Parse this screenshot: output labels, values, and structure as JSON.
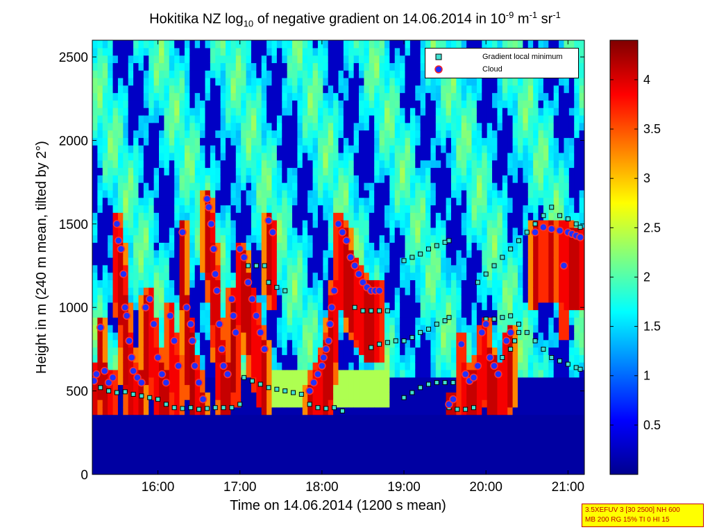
{
  "title": {
    "prefix": "Hokitika NZ log",
    "sub": "10",
    "middle": " of negative gradient on 14.06.2014 in 10",
    "sup1": "-9",
    "unit1": " m",
    "sup2": "-1",
    "unit2": " sr",
    "sup3": "-1"
  },
  "chart_data": {
    "type": "heatmap",
    "xlabel": "Time on 14.06.2014 (1200 s mean)",
    "ylabel": "Height in m (240 m mean, tilted by 2°)",
    "xlim": [
      15.2,
      21.2
    ],
    "ylim": [
      0,
      2600
    ],
    "x_ticks": [
      {
        "value": 16,
        "label": "16:00"
      },
      {
        "value": 17,
        "label": "17:00"
      },
      {
        "value": 18,
        "label": "18:00"
      },
      {
        "value": 19,
        "label": "19:00"
      },
      {
        "value": 20,
        "label": "20:00"
      },
      {
        "value": 21,
        "label": "21:00"
      }
    ],
    "y_ticks": [
      0,
      500,
      1000,
      1500,
      2000,
      2500
    ],
    "colorbar": {
      "range": [
        0,
        4.4
      ],
      "ticks": [
        0.5,
        1,
        1.5,
        2,
        2.5,
        3,
        3.5,
        4
      ],
      "colormap": "jet"
    },
    "legend": [
      {
        "label": "Gradient local minimum",
        "marker": "square",
        "color": "#40e0d0"
      },
      {
        "label": "Cloud",
        "marker": "circle",
        "color": "#2030ff",
        "edge": "#ff2020"
      }
    ],
    "legend_position": "top-right",
    "series": [
      {
        "name": "Gradient local minimum",
        "points": [
          [
            15.22,
            560
          ],
          [
            15.3,
            520
          ],
          [
            15.4,
            500
          ],
          [
            15.5,
            490
          ],
          [
            15.6,
            495
          ],
          [
            15.7,
            480
          ],
          [
            15.8,
            470
          ],
          [
            15.9,
            460
          ],
          [
            16.0,
            450
          ],
          [
            16.1,
            420
          ],
          [
            16.2,
            400
          ],
          [
            16.3,
            395
          ],
          [
            16.4,
            400
          ],
          [
            16.5,
            390
          ],
          [
            16.6,
            395
          ],
          [
            16.7,
            400
          ],
          [
            16.8,
            400
          ],
          [
            16.9,
            400
          ],
          [
            17.0,
            420
          ],
          [
            17.05,
            580
          ],
          [
            17.15,
            560
          ],
          [
            17.25,
            540
          ],
          [
            17.35,
            520
          ],
          [
            17.45,
            510
          ],
          [
            17.55,
            500
          ],
          [
            17.65,
            490
          ],
          [
            17.75,
            480
          ],
          [
            17.1,
            1250
          ],
          [
            17.2,
            1250
          ],
          [
            17.3,
            1250
          ],
          [
            17.35,
            1150
          ],
          [
            17.45,
            1120
          ],
          [
            17.55,
            1100
          ],
          [
            17.85,
            420
          ],
          [
            17.95,
            400
          ],
          [
            18.05,
            395
          ],
          [
            18.15,
            400
          ],
          [
            18.25,
            380
          ],
          [
            18.4,
            1000
          ],
          [
            18.5,
            980
          ],
          [
            18.6,
            980
          ],
          [
            18.7,
            980
          ],
          [
            18.8,
            980
          ],
          [
            18.6,
            760
          ],
          [
            18.7,
            780
          ],
          [
            18.8,
            790
          ],
          [
            18.9,
            800
          ],
          [
            19.0,
            800
          ],
          [
            19.1,
            820
          ],
          [
            19.2,
            850
          ],
          [
            19.3,
            870
          ],
          [
            19.4,
            900
          ],
          [
            19.5,
            920
          ],
          [
            19.55,
            940
          ],
          [
            19.0,
            1280
          ],
          [
            19.1,
            1300
          ],
          [
            19.2,
            1320
          ],
          [
            19.3,
            1350
          ],
          [
            19.4,
            1370
          ],
          [
            19.5,
            1390
          ],
          [
            19.55,
            1400
          ],
          [
            19.0,
            460
          ],
          [
            19.1,
            490
          ],
          [
            19.2,
            520
          ],
          [
            19.3,
            540
          ],
          [
            19.4,
            550
          ],
          [
            19.5,
            550
          ],
          [
            19.6,
            550
          ],
          [
            19.55,
            400
          ],
          [
            19.65,
            390
          ],
          [
            19.75,
            390
          ],
          [
            19.85,
            400
          ],
          [
            19.9,
            1150
          ],
          [
            20.0,
            1200
          ],
          [
            20.1,
            1250
          ],
          [
            20.2,
            1300
          ],
          [
            20.3,
            1350
          ],
          [
            20.4,
            1400
          ],
          [
            20.5,
            1450
          ],
          [
            20.6,
            1500
          ],
          [
            20.7,
            1550
          ],
          [
            20.8,
            1600
          ],
          [
            20.9,
            1550
          ],
          [
            21.0,
            1530
          ],
          [
            21.1,
            1500
          ],
          [
            21.15,
            1480
          ],
          [
            20.0,
            930
          ],
          [
            20.1,
            930
          ],
          [
            20.2,
            940
          ],
          [
            20.3,
            950
          ],
          [
            20.4,
            900
          ],
          [
            20.5,
            850
          ],
          [
            20.6,
            800
          ],
          [
            20.7,
            750
          ],
          [
            20.8,
            700
          ],
          [
            20.9,
            680
          ],
          [
            21.0,
            660
          ],
          [
            21.1,
            640
          ],
          [
            21.15,
            630
          ],
          [
            20.2,
            700
          ],
          [
            20.3,
            750
          ],
          [
            20.35,
            800
          ],
          [
            20.4,
            850
          ]
        ]
      },
      {
        "name": "Cloud",
        "points": [
          [
            15.22,
            560
          ],
          [
            15.25,
            600
          ],
          [
            15.3,
            880
          ],
          [
            15.35,
            620
          ],
          [
            15.4,
            550
          ],
          [
            15.45,
            580
          ],
          [
            15.5,
            1500
          ],
          [
            15.52,
            1400
          ],
          [
            15.55,
            1350
          ],
          [
            15.58,
            1200
          ],
          [
            15.6,
            1000
          ],
          [
            15.62,
            950
          ],
          [
            15.65,
            800
          ],
          [
            15.68,
            700
          ],
          [
            15.7,
            620
          ],
          [
            15.75,
            580
          ],
          [
            15.8,
            550
          ],
          [
            15.85,
            1000
          ],
          [
            15.9,
            1050
          ],
          [
            15.95,
            900
          ],
          [
            16.0,
            700
          ],
          [
            16.05,
            600
          ],
          [
            16.1,
            550
          ],
          [
            16.15,
            950
          ],
          [
            16.2,
            800
          ],
          [
            16.25,
            650
          ],
          [
            16.3,
            1450
          ],
          [
            16.35,
            1000
          ],
          [
            16.4,
            900
          ],
          [
            16.42,
            800
          ],
          [
            16.45,
            650
          ],
          [
            16.5,
            550
          ],
          [
            16.55,
            450
          ],
          [
            16.6,
            1650
          ],
          [
            16.62,
            1600
          ],
          [
            16.65,
            1500
          ],
          [
            16.68,
            1350
          ],
          [
            16.7,
            1200
          ],
          [
            16.72,
            1100
          ],
          [
            16.75,
            900
          ],
          [
            16.78,
            750
          ],
          [
            16.8,
            650
          ],
          [
            16.85,
            600
          ],
          [
            16.9,
            1050
          ],
          [
            16.92,
            950
          ],
          [
            16.95,
            850
          ],
          [
            17.0,
            1350
          ],
          [
            17.05,
            1300
          ],
          [
            17.1,
            1150
          ],
          [
            17.15,
            1050
          ],
          [
            17.2,
            950
          ],
          [
            17.25,
            850
          ],
          [
            17.3,
            750
          ],
          [
            17.35,
            1520
          ],
          [
            17.4,
            1450
          ],
          [
            17.85,
            500
          ],
          [
            17.9,
            550
          ],
          [
            17.95,
            600
          ],
          [
            18.0,
            650
          ],
          [
            18.02,
            700
          ],
          [
            18.05,
            750
          ],
          [
            18.08,
            800
          ],
          [
            18.1,
            900
          ],
          [
            18.12,
            1000
          ],
          [
            18.15,
            1100
          ],
          [
            18.2,
            1500
          ],
          [
            18.25,
            1450
          ],
          [
            18.3,
            1400
          ],
          [
            18.35,
            1300
          ],
          [
            18.4,
            1250
          ],
          [
            18.45,
            1200
          ],
          [
            18.5,
            1150
          ],
          [
            18.55,
            1120
          ],
          [
            18.6,
            1100
          ],
          [
            18.65,
            1100
          ],
          [
            18.7,
            1100
          ],
          [
            19.55,
            420
          ],
          [
            19.6,
            450
          ],
          [
            19.7,
            780
          ],
          [
            19.75,
            600
          ],
          [
            19.8,
            560
          ],
          [
            19.85,
            580
          ],
          [
            19.9,
            650
          ],
          [
            19.95,
            850
          ],
          [
            20.0,
            900
          ],
          [
            20.05,
            700
          ],
          [
            20.1,
            650
          ],
          [
            20.15,
            600
          ],
          [
            20.25,
            800
          ],
          [
            20.3,
            850
          ],
          [
            20.6,
            1450
          ],
          [
            20.7,
            1480
          ],
          [
            20.8,
            1470
          ],
          [
            20.9,
            1460
          ],
          [
            21.0,
            1450
          ],
          [
            21.05,
            1440
          ],
          [
            21.1,
            1430
          ],
          [
            21.15,
            1420
          ],
          [
            20.95,
            1250
          ]
        ]
      }
    ]
  },
  "info_box": {
    "line1": "3.5XEFUV 3 [30 2500] NH 600",
    "line2": "MB 200 RG 15% TI 0 HI 15"
  },
  "colors": {
    "background": "#ffffff",
    "low": "#00008f",
    "high": "#800000",
    "info_box_bg": "#ffff00",
    "info_box_text": "#c00000"
  }
}
